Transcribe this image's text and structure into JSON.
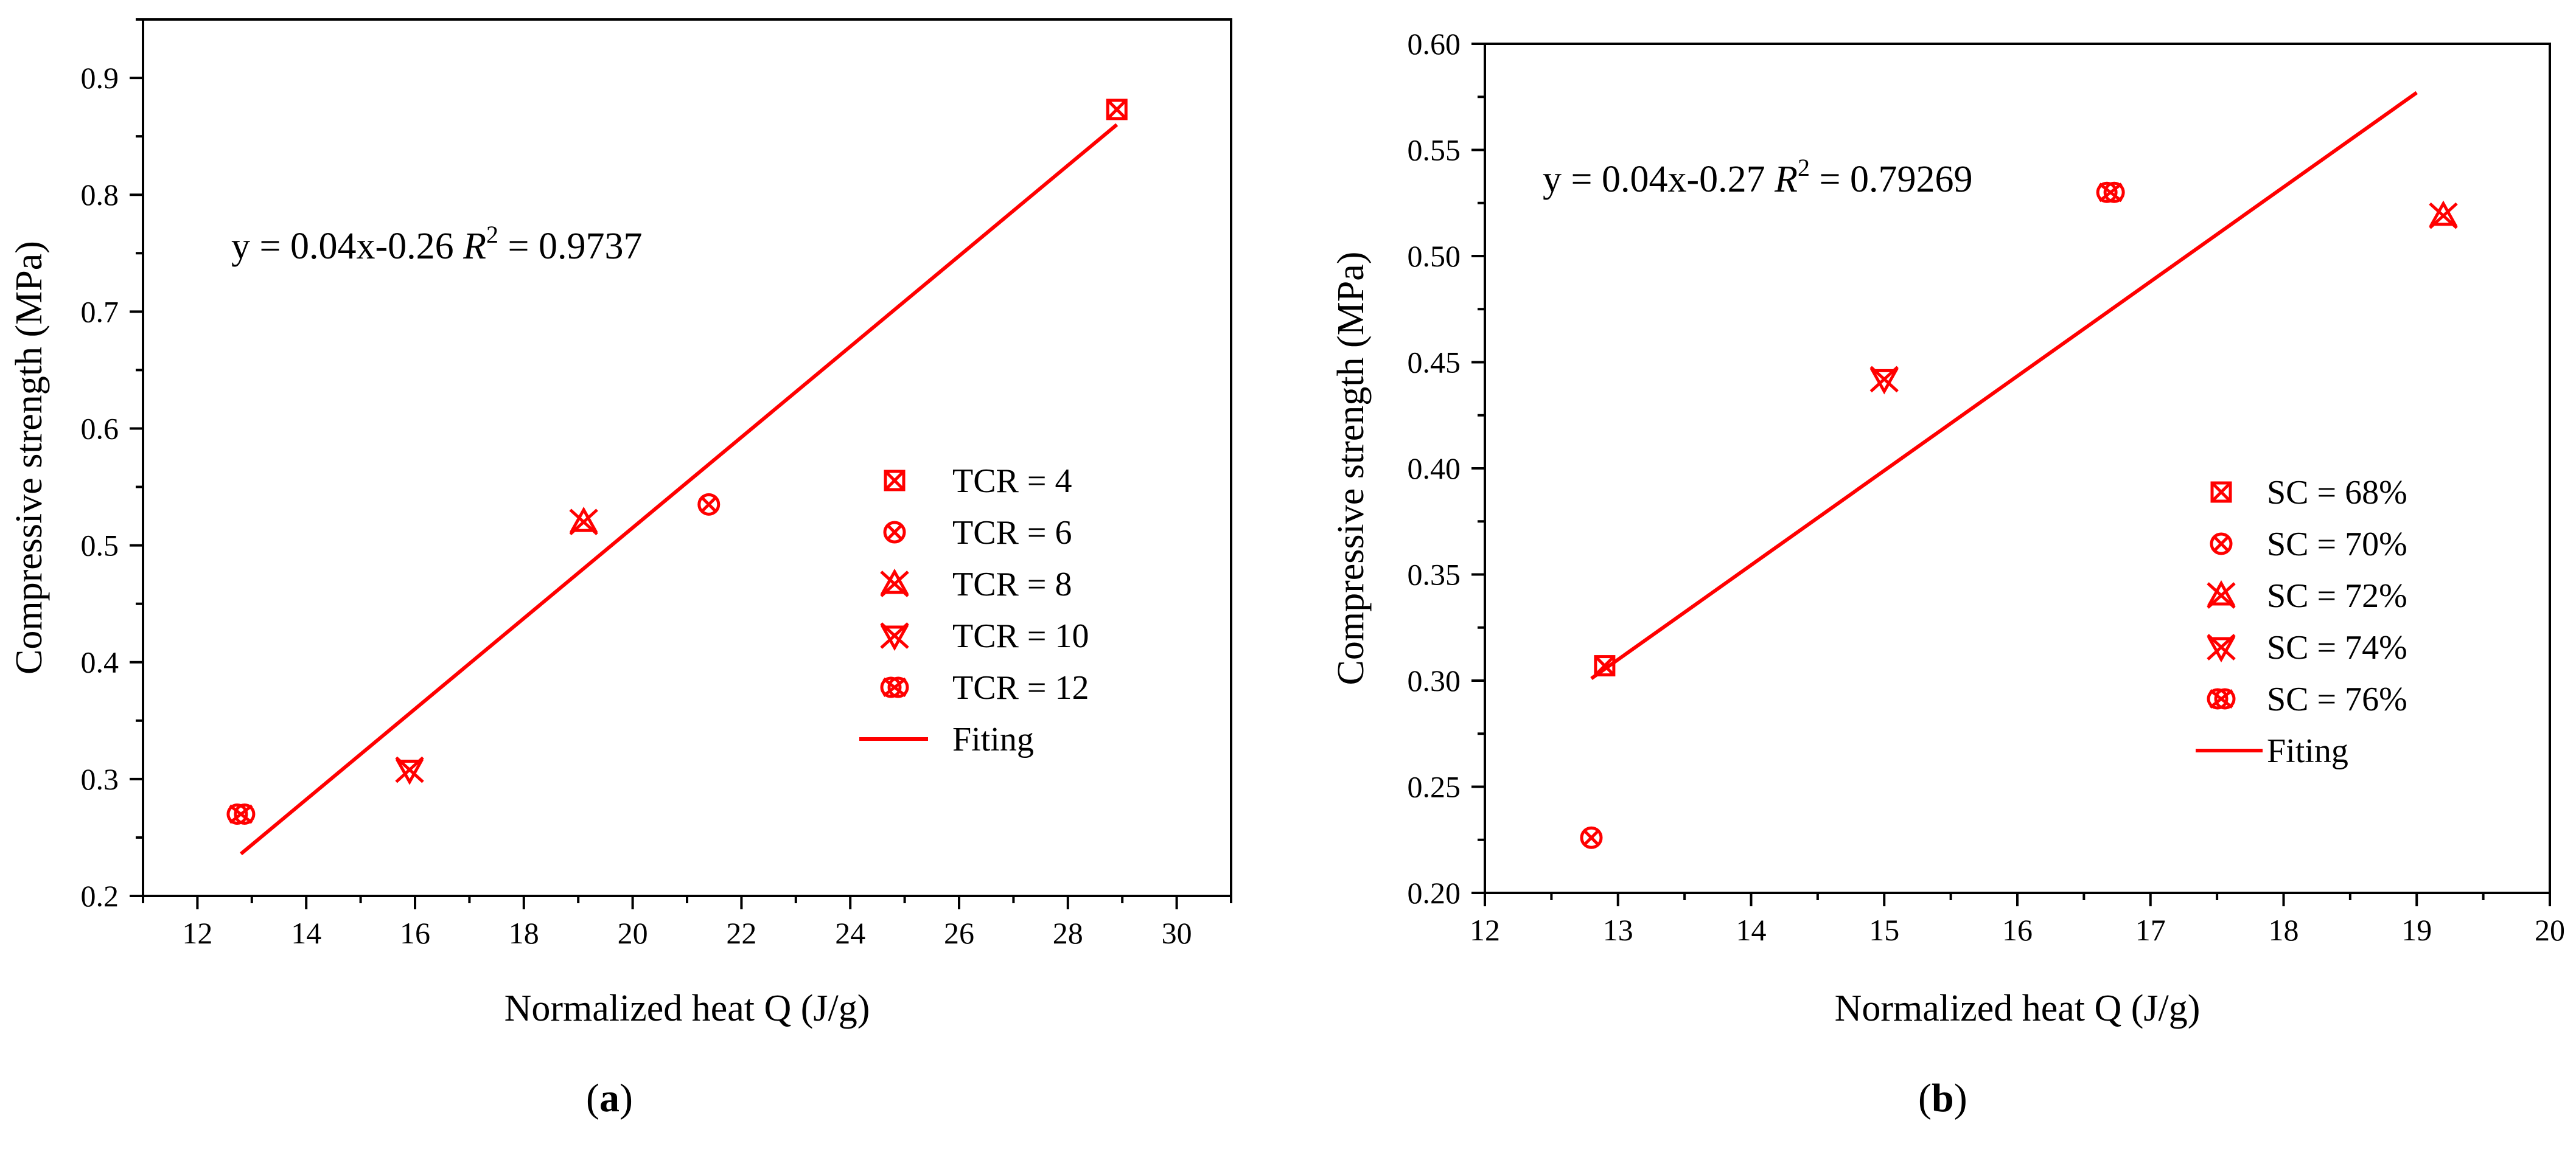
{
  "chart_data": [
    {
      "type": "scatter",
      "panel": "(a)",
      "panel_letter": "a",
      "xlabel": "Normalized heat Q (J/g)",
      "ylabel": "Compressive strength (MPa)",
      "xlim": [
        11,
        31
      ],
      "ylim": [
        0.2,
        0.95
      ],
      "xticks": [
        12,
        14,
        16,
        18,
        20,
        22,
        24,
        26,
        28,
        30
      ],
      "yticks": [
        0.2,
        0.3,
        0.4,
        0.5,
        0.6,
        0.7,
        0.8,
        0.9
      ],
      "ytick_decimals": 1,
      "equation": "y = 0.04x-0.26",
      "r2_letter": "R",
      "r2_exp": "2",
      "r2_value": " = 0.9737",
      "series": [
        {
          "name": "TCR = 4",
          "marker": "square-x",
          "x": 28.9,
          "y": 0.873
        },
        {
          "name": "TCR = 6",
          "marker": "circle-x",
          "x": 21.4,
          "y": 0.535
        },
        {
          "name": "TCR = 8",
          "marker": "star-up",
          "x": 19.1,
          "y": 0.52
        },
        {
          "name": "TCR = 10",
          "marker": "star-down",
          "x": 15.9,
          "y": 0.308
        },
        {
          "name": "TCR = 12",
          "marker": "double-circle-x",
          "x": 12.8,
          "y": 0.27
        }
      ],
      "fit": {
        "name": "Fiting",
        "x": [
          12.8,
          28.9
        ],
        "y": [
          0.236,
          0.86
        ]
      },
      "legend_position": "right",
      "color": "#ff0000"
    },
    {
      "type": "scatter",
      "panel": "(b)",
      "panel_letter": "b",
      "xlabel": "Normalized heat Q (J/g)",
      "ylabel": "Compressive strength (MPa)",
      "xlim": [
        12,
        20
      ],
      "ylim": [
        0.2,
        0.6
      ],
      "xticks": [
        12,
        13,
        14,
        15,
        16,
        17,
        18,
        19,
        20
      ],
      "yticks": [
        0.2,
        0.25,
        0.3,
        0.35,
        0.4,
        0.45,
        0.5,
        0.55,
        0.6
      ],
      "ytick_decimals": 2,
      "equation": "y = 0.04x-0.27",
      "r2_letter": "R",
      "r2_exp": "2",
      "r2_value": " = 0.79269",
      "series": [
        {
          "name": "SC = 68%",
          "marker": "square-x",
          "x": 12.9,
          "y": 0.307
        },
        {
          "name": "SC = 70%",
          "marker": "circle-x",
          "x": 12.8,
          "y": 0.226
        },
        {
          "name": "SC = 72%",
          "marker": "star-up",
          "x": 19.2,
          "y": 0.519
        },
        {
          "name": "SC = 74%",
          "marker": "star-down",
          "x": 15.0,
          "y": 0.442
        },
        {
          "name": "SC = 76%",
          "marker": "double-circle-x",
          "x": 16.7,
          "y": 0.53
        }
      ],
      "fit": {
        "name": "Fiting",
        "x": [
          12.8,
          19.0
        ],
        "y": [
          0.301,
          0.577
        ]
      },
      "legend_position": "bottom-right",
      "color": "#ff0000"
    }
  ]
}
